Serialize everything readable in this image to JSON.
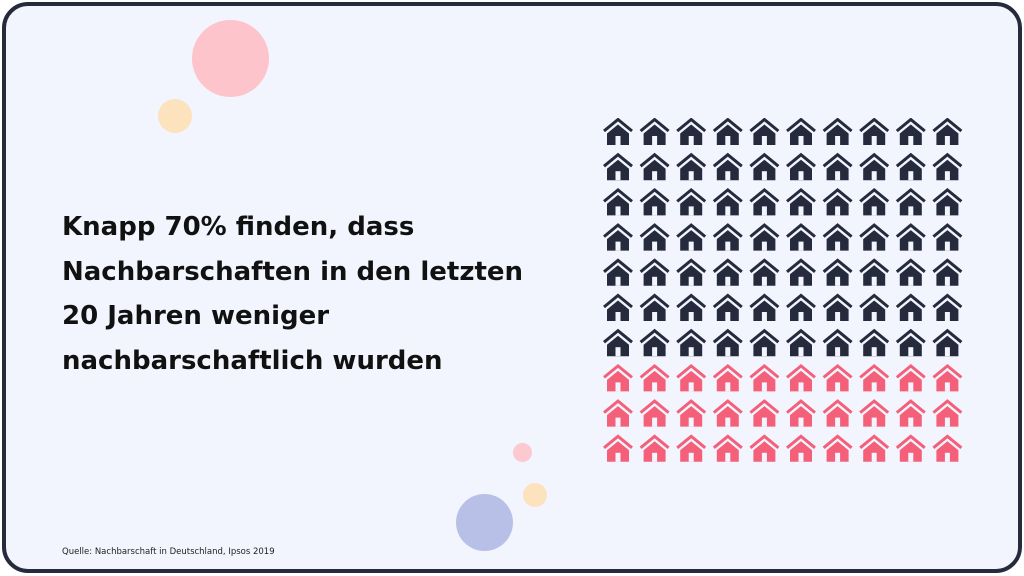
{
  "headline": "Knapp 70% finden, dass Nachbarschaften in den letzten 20 Jahren weniger nachbarschaftlich wurden",
  "source": "Quelle: Nachbarschaft in Deutschland, Ipsos 2019",
  "icon": "house-icon",
  "colors": {
    "background": "#f2f5fd",
    "frame": "#252a3d",
    "dark_house": "#252a3d",
    "pink_house": "#f4607a"
  },
  "chart_data": {
    "type": "waffle",
    "total": 100,
    "rows": 10,
    "columns": 10,
    "series": [
      {
        "value": 70,
        "color": "#252a3d"
      },
      {
        "value": 30,
        "color": "#f4607a"
      }
    ]
  }
}
